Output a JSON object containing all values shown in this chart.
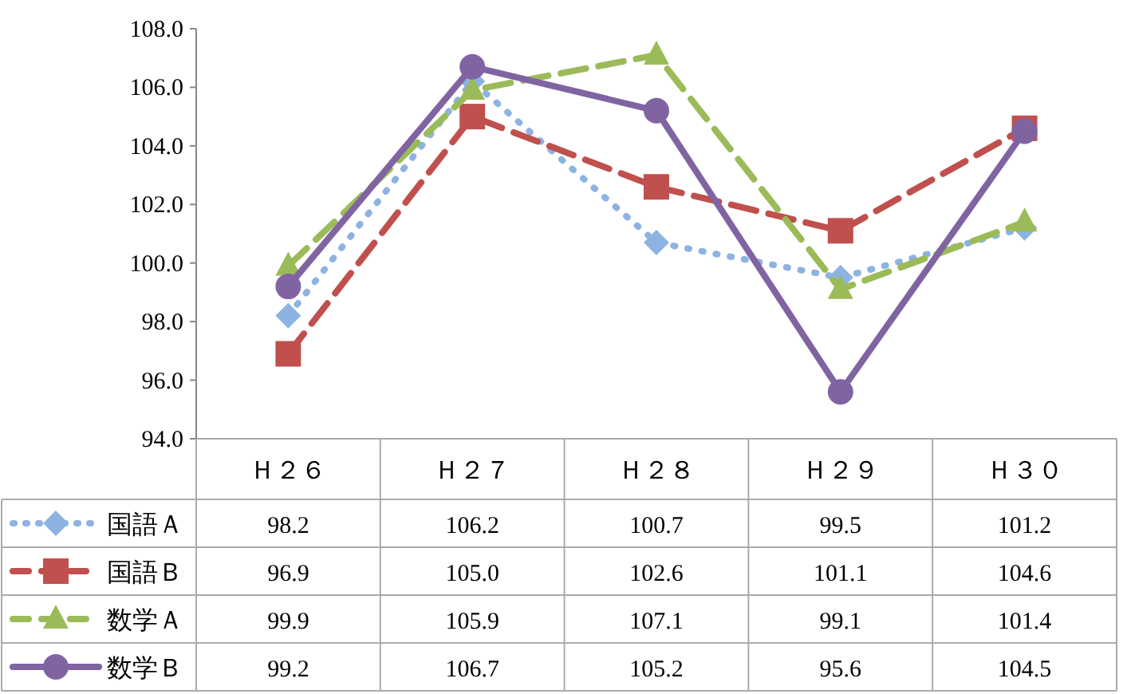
{
  "chart_data": {
    "type": "line",
    "categories": [
      "Ｈ２６",
      "Ｈ２７",
      "Ｈ２８",
      "Ｈ２９",
      "Ｈ３０"
    ],
    "series": [
      {
        "name": "国語Ａ",
        "color": "#8db3e2",
        "values": [
          98.2,
          106.2,
          100.7,
          99.5,
          101.2
        ],
        "value_labels": [
          "98.2",
          "106.2",
          "100.7",
          "99.5",
          "101.2"
        ],
        "marker": "diamond",
        "line_style": "dotted"
      },
      {
        "name": "国語Ｂ",
        "color": "#c0504d",
        "values": [
          96.9,
          105.0,
          102.6,
          101.1,
          104.6
        ],
        "value_labels": [
          "96.9",
          "105.0",
          "102.6",
          "101.1",
          "104.6"
        ],
        "marker": "square",
        "line_style": "dashed"
      },
      {
        "name": "数学Ａ",
        "color": "#9bbb59",
        "values": [
          99.9,
          105.9,
          107.1,
          99.1,
          101.4
        ],
        "value_labels": [
          "99.9",
          "105.9",
          "107.1",
          "99.1",
          "101.4"
        ],
        "marker": "triangle",
        "line_style": "dashed"
      },
      {
        "name": "数学Ｂ",
        "color": "#8064a2",
        "values": [
          99.2,
          106.7,
          105.2,
          95.6,
          104.5
        ],
        "value_labels": [
          "99.2",
          "106.7",
          "105.2",
          "95.6",
          "104.5"
        ],
        "marker": "circle",
        "line_style": "solid"
      }
    ],
    "ylim": [
      94,
      108
    ],
    "yticks": [
      {
        "value": 94,
        "label": "94.0"
      },
      {
        "value": 96,
        "label": "96.0"
      },
      {
        "value": 98,
        "label": "98.0"
      },
      {
        "value": 100,
        "label": "100.0"
      },
      {
        "value": 102,
        "label": "102.0"
      },
      {
        "value": 104,
        "label": "104.0"
      },
      {
        "value": 106,
        "label": "106.0"
      },
      {
        "value": 108,
        "label": "108.0"
      }
    ],
    "legend": "bottom",
    "grid": false
  }
}
